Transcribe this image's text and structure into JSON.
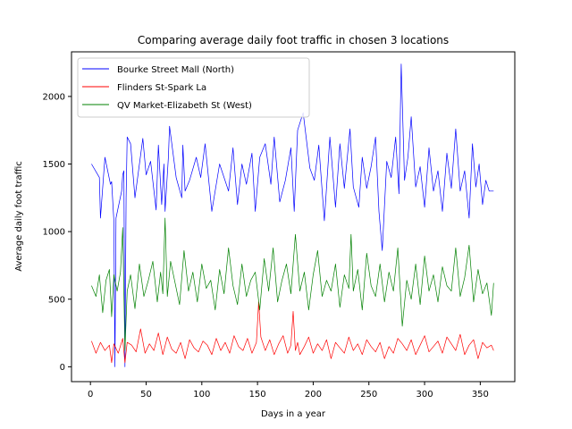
{
  "chart_data": {
    "type": "line",
    "title": "Comparing average daily foot traffic in chosen 3 locations",
    "xlabel": "Days in a year",
    "ylabel": "Average daily foot traffic",
    "xlim": [
      -17,
      381
    ],
    "ylim": [
      -110,
      2330
    ],
    "xticks": [
      0,
      50,
      100,
      150,
      200,
      250,
      300,
      350
    ],
    "yticks": [
      0,
      500,
      1000,
      1500,
      2000
    ],
    "grid": false,
    "legend_position": "upper-left",
    "series": [
      {
        "name": "Bourke Street Mall (North)",
        "color": "#0000ff",
        "x": [
          1,
          8,
          9,
          13,
          18,
          19,
          21,
          22,
          23,
          28,
          29,
          30,
          31,
          32,
          33,
          36,
          40,
          47,
          50,
          54,
          59,
          61,
          64,
          66,
          67,
          70,
          71,
          77,
          82,
          83,
          85,
          89,
          95,
          99,
          103,
          109,
          116,
          124,
          128,
          132,
          136,
          140,
          145,
          148,
          152,
          157,
          162,
          165,
          170,
          175,
          180,
          183,
          186,
          191,
          197,
          201,
          205,
          210,
          215,
          220,
          224,
          228,
          233,
          236,
          241,
          244,
          248,
          252,
          256,
          259,
          262,
          266,
          270,
          274,
          277,
          279,
          282,
          285,
          288,
          292,
          296,
          300,
          304,
          308,
          312,
          316,
          320,
          324,
          328,
          332,
          336,
          340,
          343,
          346,
          349,
          352,
          355,
          358,
          362
        ],
        "values": [
          1500,
          1400,
          1100,
          1550,
          1350,
          1370,
          1080,
          0,
          1100,
          1300,
          1420,
          1450,
          0,
          1250,
          1700,
          1650,
          1250,
          1690,
          1420,
          1520,
          1160,
          1640,
          1200,
          1500,
          1150,
          1550,
          1780,
          1400,
          1250,
          1640,
          1300,
          1380,
          1550,
          1400,
          1650,
          1150,
          1500,
          1300,
          1620,
          1200,
          1500,
          1350,
          1580,
          1150,
          1550,
          1650,
          1350,
          1700,
          1220,
          1380,
          1620,
          1150,
          1750,
          1880,
          1470,
          1380,
          1640,
          1080,
          1700,
          1180,
          1650,
          1320,
          1760,
          1330,
          1180,
          1550,
          1320,
          1480,
          1700,
          1150,
          860,
          1520,
          1400,
          1700,
          1280,
          2240,
          1380,
          1550,
          1850,
          1330,
          1480,
          1180,
          1620,
          1300,
          1450,
          1150,
          1580,
          1320,
          1760,
          1300,
          1450,
          1100,
          1650,
          1330,
          1500,
          1200,
          1380,
          1300,
          1300
        ]
      },
      {
        "name": "Flinders St-Spark La",
        "color": "#ff0000",
        "x": [
          1,
          5,
          9,
          13,
          17,
          19,
          21,
          25,
          29,
          31,
          33,
          37,
          41,
          45,
          49,
          53,
          57,
          61,
          65,
          69,
          73,
          77,
          81,
          85,
          89,
          93,
          97,
          101,
          105,
          109,
          113,
          117,
          121,
          125,
          129,
          133,
          137,
          141,
          145,
          149,
          151,
          153,
          157,
          161,
          165,
          169,
          173,
          177,
          180,
          182,
          184,
          186,
          188,
          192,
          196,
          200,
          204,
          208,
          212,
          216,
          220,
          224,
          228,
          232,
          236,
          240,
          244,
          248,
          252,
          256,
          260,
          264,
          268,
          272,
          276,
          280,
          284,
          288,
          292,
          296,
          300,
          304,
          308,
          312,
          316,
          320,
          324,
          328,
          332,
          336,
          340,
          344,
          348,
          352,
          356,
          360,
          362
        ],
        "values": [
          190,
          100,
          180,
          120,
          160,
          30,
          170,
          100,
          210,
          30,
          180,
          160,
          110,
          280,
          100,
          170,
          120,
          250,
          90,
          220,
          130,
          100,
          180,
          60,
          200,
          140,
          110,
          190,
          160,
          90,
          210,
          120,
          180,
          100,
          230,
          150,
          120,
          210,
          100,
          180,
          480,
          220,
          120,
          200,
          90,
          170,
          230,
          100,
          160,
          410,
          120,
          180,
          90,
          150,
          220,
          100,
          170,
          120,
          200,
          60,
          180,
          140,
          100,
          220,
          120,
          170,
          90,
          200,
          150,
          110,
          180,
          60,
          150,
          100,
          210,
          170,
          120,
          200,
          90,
          160,
          230,
          110,
          150,
          190,
          100,
          220,
          170,
          120,
          240,
          90,
          160,
          200,
          60,
          180,
          140,
          160,
          120
        ]
      },
      {
        "name": "QV Market-Elizabeth St (West)",
        "color": "#008000",
        "x": [
          1,
          5,
          8,
          11,
          14,
          17,
          19,
          21,
          24,
          27,
          29,
          31,
          33,
          36,
          40,
          44,
          48,
          52,
          56,
          60,
          63,
          65,
          67,
          69,
          72,
          76,
          80,
          84,
          88,
          92,
          96,
          100,
          104,
          108,
          112,
          116,
          120,
          124,
          128,
          132,
          136,
          140,
          144,
          148,
          152,
          156,
          160,
          164,
          168,
          172,
          176,
          180,
          184,
          188,
          192,
          196,
          200,
          204,
          208,
          212,
          216,
          220,
          224,
          228,
          232,
          234,
          236,
          240,
          244,
          248,
          252,
          256,
          260,
          264,
          268,
          272,
          276,
          280,
          284,
          288,
          292,
          296,
          300,
          304,
          308,
          312,
          316,
          320,
          324,
          328,
          332,
          336,
          340,
          344,
          348,
          352,
          356,
          360,
          362
        ],
        "values": [
          600,
          520,
          680,
          400,
          640,
          720,
          370,
          680,
          560,
          700,
          1030,
          120,
          560,
          680,
          430,
          760,
          520,
          640,
          780,
          480,
          700,
          540,
          1100,
          520,
          780,
          620,
          460,
          860,
          560,
          700,
          480,
          760,
          580,
          640,
          420,
          720,
          540,
          880,
          600,
          460,
          760,
          520,
          640,
          700,
          420,
          800,
          560,
          880,
          480,
          640,
          760,
          540,
          980,
          560,
          700,
          420,
          680,
          860,
          520,
          640,
          560,
          760,
          440,
          680,
          580,
          980,
          560,
          720,
          420,
          840,
          600,
          520,
          760,
          480,
          700,
          560,
          880,
          300,
          640,
          500,
          760,
          460,
          820,
          560,
          680,
          480,
          740,
          600,
          560,
          880,
          520,
          660,
          900,
          480,
          720,
          540,
          620,
          380,
          620
        ]
      }
    ]
  }
}
